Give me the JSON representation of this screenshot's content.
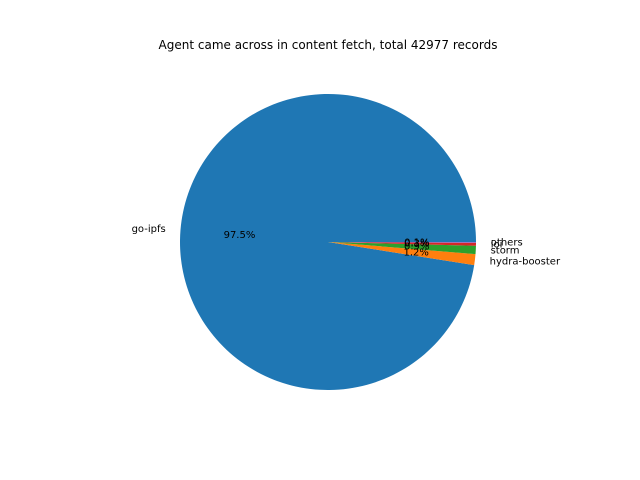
{
  "chart_data": {
    "type": "pie",
    "title": "Agent came across in content fetch, total 42977 records",
    "start_angle_deg": 0,
    "counterclockwise": true,
    "slices": [
      {
        "label": "go-ipfs",
        "value": 97.5,
        "pct_label": "97.5%",
        "color": "#1f77b4"
      },
      {
        "label": "hydra-booster",
        "value": 1.2,
        "pct_label": "1.2%",
        "color": "#ff7f0e"
      },
      {
        "label": "storm",
        "value": 0.9,
        "pct_label": "0.9%",
        "color": "#2ca02c"
      },
      {
        "label": "ioi",
        "value": 0.3,
        "pct_label": "0.3%",
        "color": "#d62728"
      },
      {
        "label": "others",
        "value": 0.1,
        "pct_label": "0.1%",
        "color": "#9467bd"
      }
    ]
  }
}
